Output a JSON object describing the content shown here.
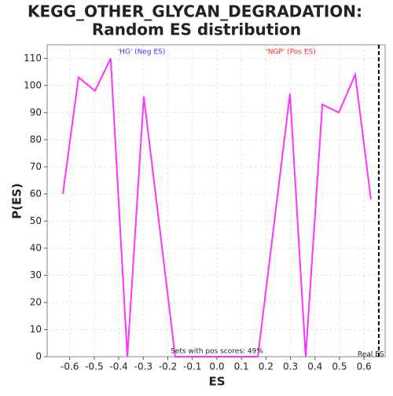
{
  "chart_data": {
    "type": "line",
    "title": [
      "KEGG_OTHER_GLYCAN_DEGRADATION:",
      "Random ES distribution"
    ],
    "x_label": "ES",
    "y_label": "P(ES)",
    "x": [
      -0.628,
      -0.564,
      -0.497,
      -0.433,
      -0.365,
      -0.298,
      -0.17,
      -0.1,
      -0.03,
      0.03,
      0.1,
      0.167,
      0.298,
      0.362,
      0.43,
      0.497,
      0.564,
      0.628
    ],
    "series": [
      {
        "name": "P(ES)",
        "color": "#ff33ff",
        "values": [
          60,
          103,
          98,
          110,
          0,
          96,
          0,
          0,
          0,
          0,
          0,
          0,
          97,
          0,
          93,
          90,
          104,
          58
        ]
      }
    ],
    "xlim": [
      -0.692,
      0.686
    ],
    "ylim": [
      0,
      115
    ],
    "xticks": [
      -0.6,
      -0.5,
      -0.4,
      -0.3,
      -0.2,
      -0.1,
      {
        "value": 0,
        "label": "0.0"
      },
      0.1,
      0.2,
      0.3,
      0.4,
      0.5,
      0.6
    ],
    "yticks": [
      0,
      10,
      20,
      30,
      40,
      50,
      60,
      70,
      80,
      90,
      100,
      110
    ],
    "grid": true,
    "real_es": {
      "value": 0.66,
      "label": "Real ES"
    },
    "annotations": {
      "neg": "'HG' (Neg ES)",
      "neg_color": "#3333ff",
      "pos": "'NGP' (Pos ES)",
      "pos_color": "#ff2222",
      "pos_scores": "Sets with pos scores: 49%"
    }
  }
}
